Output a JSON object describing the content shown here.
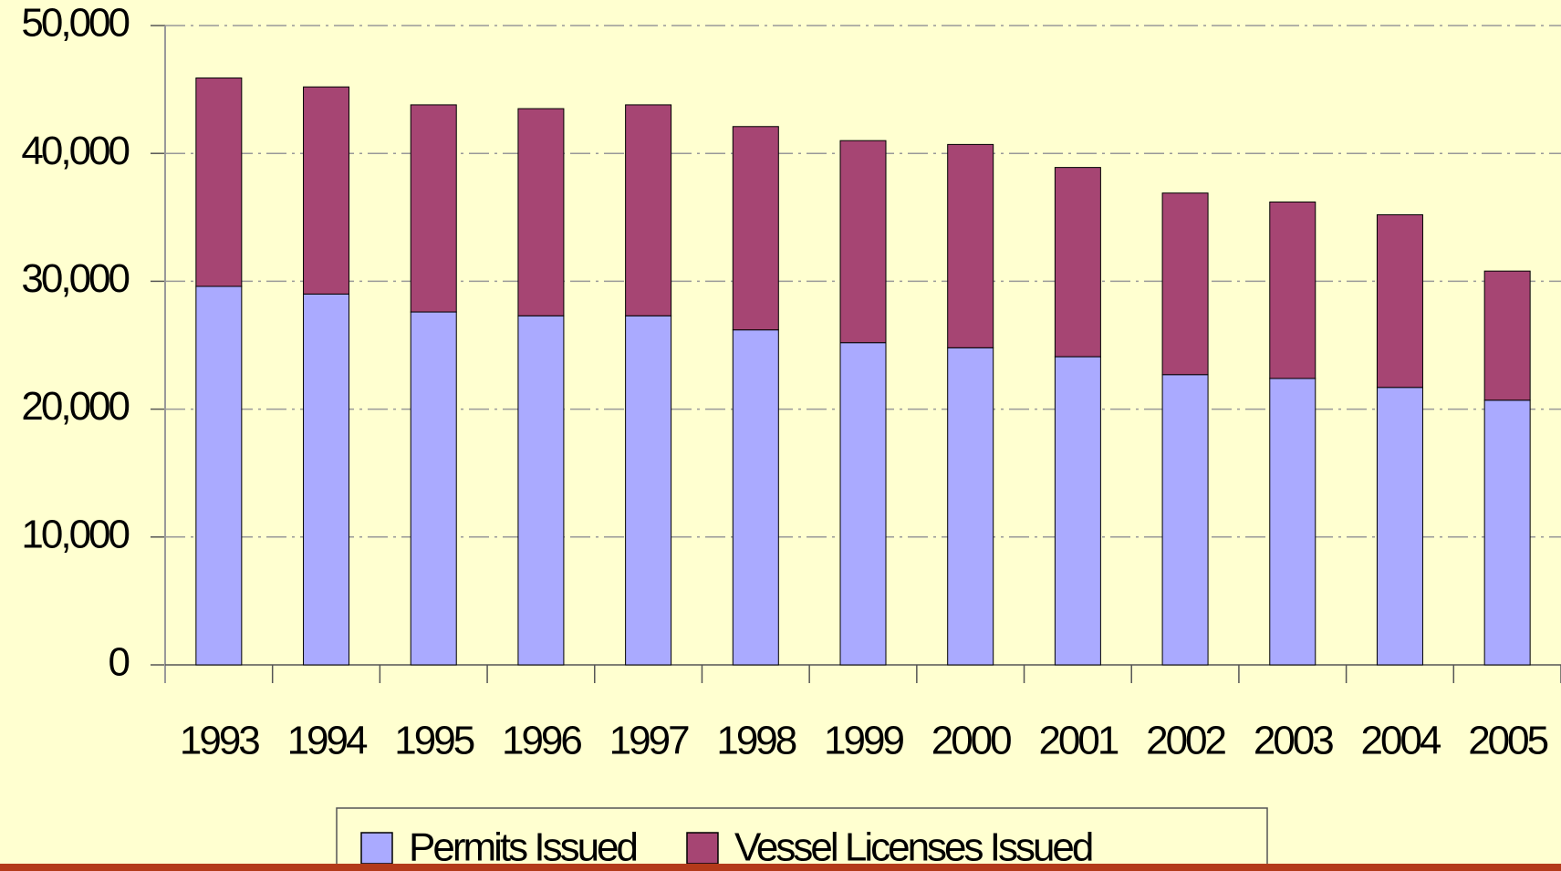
{
  "chart_data": {
    "type": "stacked_bar",
    "categories": [
      "1993",
      "1994",
      "1995",
      "1996",
      "1997",
      "1998",
      "1999",
      "2000",
      "2001",
      "2002",
      "2003",
      "2004",
      "2005"
    ],
    "series": [
      {
        "name": "Permits Issued",
        "color": "#aaaaff",
        "values": [
          29600,
          29000,
          27600,
          27300,
          27300,
          26200,
          25200,
          24800,
          24100,
          22700,
          22400,
          21700,
          20700
        ]
      },
      {
        "name": "Vessel Licenses Issued",
        "color": "#a64573",
        "values": [
          16300,
          16200,
          16200,
          16200,
          16500,
          15900,
          15800,
          15900,
          14800,
          14200,
          13800,
          13500,
          10100
        ]
      }
    ],
    "ylim": [
      0,
      50000
    ],
    "yticks": [
      {
        "value": 0,
        "label": "0"
      },
      {
        "value": 10000,
        "label": "10,000"
      },
      {
        "value": 20000,
        "label": "20,000"
      },
      {
        "value": 30000,
        "label": "30,000"
      },
      {
        "value": 40000,
        "label": "40,000"
      },
      {
        "value": 50000,
        "label": "50,000"
      }
    ],
    "grid": true,
    "legend": "bottom"
  }
}
